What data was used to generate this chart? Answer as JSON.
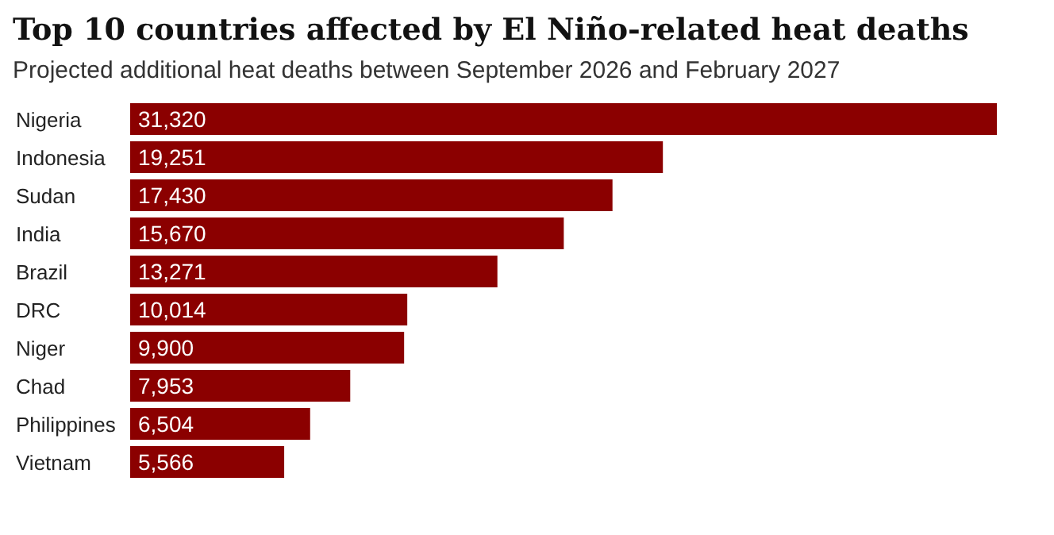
{
  "chart_data": {
    "type": "bar",
    "orientation": "horizontal",
    "title": "Top 10 countries affected by El Niño-related heat deaths",
    "subtitle": "Projected additional heat deaths between September 2026 and February 2027",
    "categories": [
      "Nigeria",
      "Indonesia",
      "Sudan",
      "India",
      "Brazil",
      "DRC",
      "Niger",
      "Chad",
      "Philippines",
      "Vietnam"
    ],
    "values": [
      31320,
      19251,
      17430,
      15670,
      13271,
      10014,
      9900,
      7953,
      6504,
      5566
    ],
    "value_labels": [
      "31,320",
      "19,251",
      "17,430",
      "15,670",
      "13,271",
      "10,014",
      "9,900",
      "7,953",
      "6,504",
      "5,566"
    ],
    "color": "#8b0000"
  }
}
